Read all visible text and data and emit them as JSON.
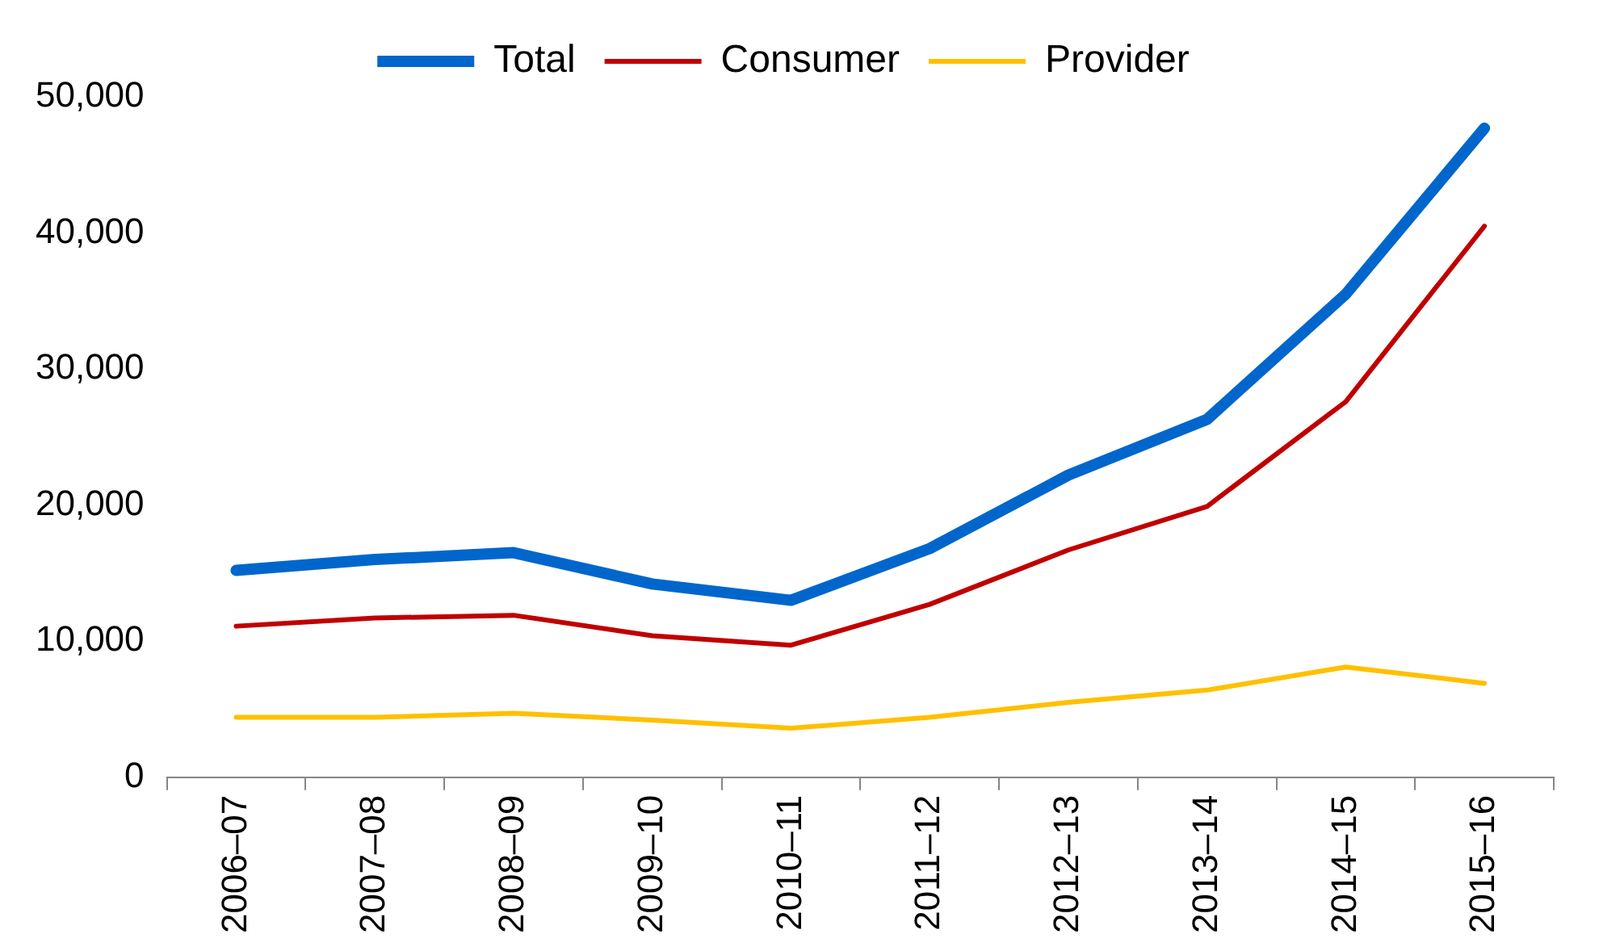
{
  "chart_data": {
    "type": "line",
    "categories": [
      "2006–07",
      "2007–08",
      "2008–09",
      "2009–10",
      "2010–11",
      "2011–12",
      "2012–13",
      "2013–14",
      "2014–15",
      "2015–16"
    ],
    "series": [
      {
        "name": "Total",
        "color": "#0066cc",
        "values": [
          15200,
          16000,
          16500,
          14200,
          13000,
          16800,
          22200,
          26300,
          35500,
          47700
        ]
      },
      {
        "name": "Consumer",
        "color": "#c00000",
        "values": [
          11100,
          11700,
          11900,
          10400,
          9700,
          12700,
          16700,
          19900,
          27600,
          40500
        ]
      },
      {
        "name": "Provider",
        "color": "#ffc000",
        "values": [
          4400,
          4400,
          4700,
          4200,
          3600,
          4400,
          5500,
          6400,
          8100,
          6900
        ]
      }
    ],
    "ylim": [
      0,
      50000
    ],
    "yticks": [
      {
        "value": 0,
        "label": "0"
      },
      {
        "value": 10000,
        "label": "10,000"
      },
      {
        "value": 20000,
        "label": "20,000"
      },
      {
        "value": 30000,
        "label": "30,000"
      },
      {
        "value": 40000,
        "label": "40,000"
      },
      {
        "value": 50000,
        "label": "50,000"
      }
    ],
    "grid": false,
    "legend": "top",
    "marker": "none",
    "line_style": "solid"
  }
}
